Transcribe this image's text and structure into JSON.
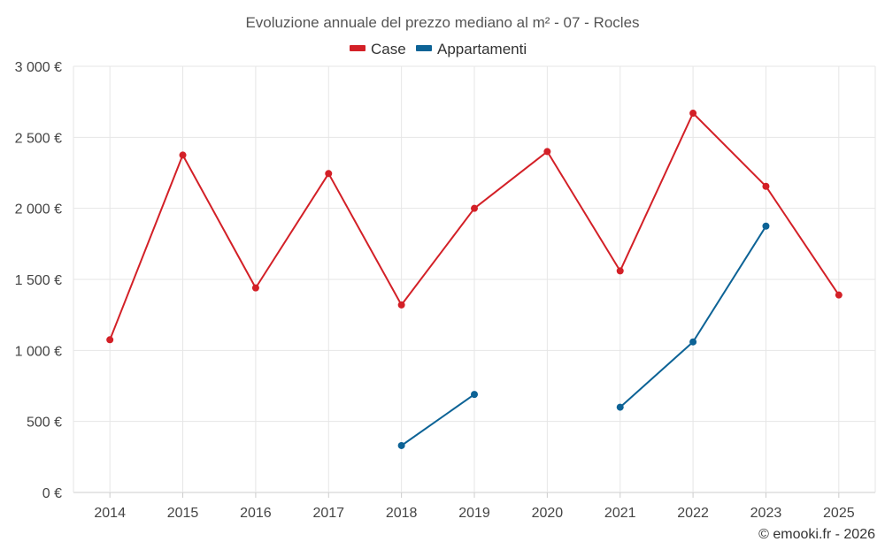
{
  "chart_data": {
    "type": "line",
    "title": "Evoluzione annuale del prezzo mediano al m² - 07 - Rocles",
    "categories": [
      "2014",
      "2015",
      "2016",
      "2017",
      "2018",
      "2019",
      "2020",
      "2021",
      "2022",
      "2023",
      "2025"
    ],
    "series": [
      {
        "name": "Case",
        "color": "#d32027",
        "values": [
          1075,
          2375,
          1440,
          2245,
          1320,
          2000,
          2400,
          1560,
          2670,
          2155,
          1390
        ]
      },
      {
        "name": "Appartamenti",
        "color": "#0d6396",
        "values": [
          null,
          null,
          null,
          null,
          330,
          690,
          null,
          600,
          1060,
          1875,
          null
        ]
      }
    ],
    "ylim": [
      0,
      3000
    ],
    "yticks": [
      0,
      500,
      1000,
      1500,
      2000,
      2500,
      3000
    ],
    "ytick_labels": [
      "0 €",
      "500 €",
      "1 000 €",
      "1 500 €",
      "2 000 €",
      "2 500 €",
      "3 000 €"
    ],
    "grid": true,
    "legend_position": "top-center",
    "xlabel": "",
    "ylabel": ""
  },
  "credit": "© emooki.fr - 2026"
}
